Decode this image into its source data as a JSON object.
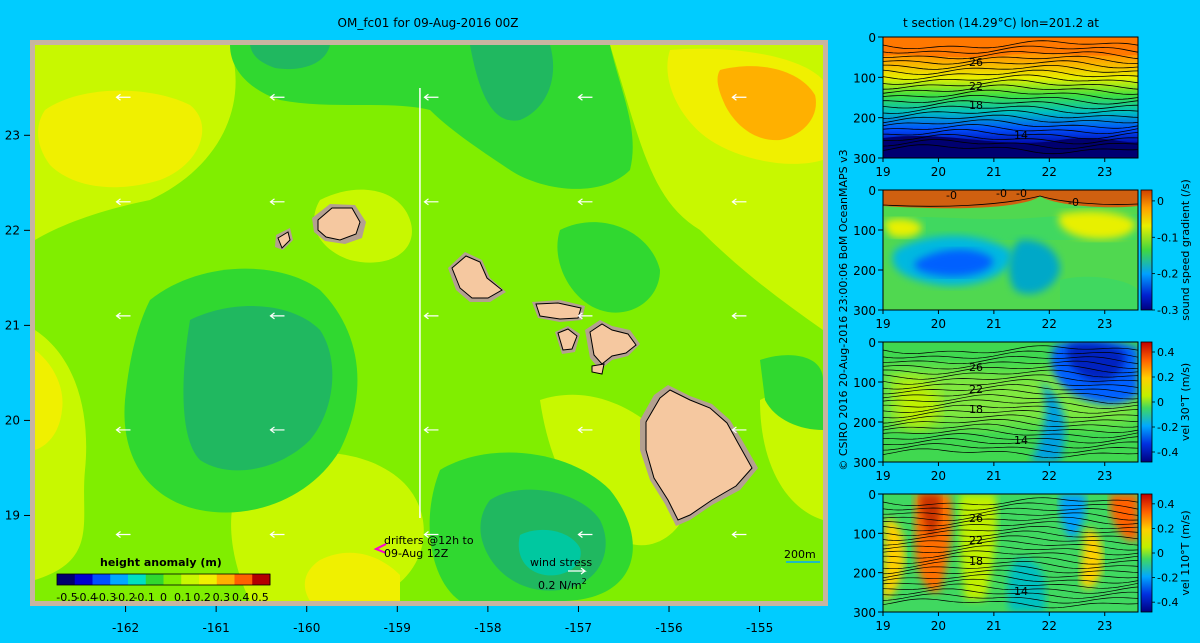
{
  "chart_data": [
    {
      "type": "heatmap",
      "title": "OM_fc01 for 09-Aug-2016 00Z",
      "x_ticks": [
        "-162",
        "-161",
        "-160",
        "-159",
        "-158",
        "-157",
        "-156",
        "-155"
      ],
      "y_ticks": [
        "23",
        "22",
        "21",
        "20",
        "19"
      ],
      "xlim": [
        -163.0,
        -154.3
      ],
      "ylim": [
        18.1,
        23.95
      ],
      "colorbar": {
        "label": "height anomaly  (m)",
        "ticks": [
          "-0.5",
          "-0.4",
          "-0.3",
          "-0.2",
          "-0.1",
          "0",
          "0.1",
          "0.2",
          "0.3",
          "0.4",
          "0.5"
        ],
        "colors": [
          "#00006e",
          "#0000d0",
          "#0050ff",
          "#00a8ff",
          "#00e0c0",
          "#30d830",
          "#80ee00",
          "#c8f800",
          "#f0f000",
          "#ffb000",
          "#ff6000",
          "#b40000"
        ]
      },
      "annotations": {
        "drifters_line1": "drifters @12h to",
        "drifters_line2": "09-Aug 12Z",
        "wind_stress_label": "wind stress",
        "wind_stress_value": "0.2 N/m",
        "wind_stress_sup": "2",
        "depth_label": "200m"
      },
      "section_longitude": -158.75
    },
    {
      "type": "heatmap",
      "title": "t section (14.29°C) lon=201.2 at",
      "x_ticks": [
        "19",
        "20",
        "21",
        "22",
        "23"
      ],
      "y_ticks": [
        "0",
        "100",
        "200",
        "300"
      ],
      "contour_labels": [
        "26",
        "22",
        "18",
        "14"
      ]
    },
    {
      "type": "heatmap",
      "x_ticks": [
        "19",
        "20",
        "21",
        "22",
        "23"
      ],
      "y_ticks": [
        "0",
        "100",
        "200",
        "300"
      ],
      "contour_labels": [
        "-0",
        "-0",
        "-0",
        "-0"
      ],
      "colorbar": {
        "label": "sound speed gradient (/s)",
        "ticks": [
          "0",
          "-0.1",
          "-0.2",
          "-0.3"
        ]
      }
    },
    {
      "type": "heatmap",
      "x_ticks": [
        "19",
        "20",
        "21",
        "22",
        "23"
      ],
      "y_ticks": [
        "0",
        "100",
        "200",
        "300"
      ],
      "contour_labels": [
        "26",
        "22",
        "18",
        "14"
      ],
      "colorbar": {
        "label": "vel 30°T (m/s)",
        "ticks": [
          "0.4",
          "0.2",
          "0",
          "-0.2",
          "-0.4"
        ]
      }
    },
    {
      "type": "heatmap",
      "x_ticks": [
        "19",
        "20",
        "21",
        "22",
        "23"
      ],
      "y_ticks": [
        "0",
        "100",
        "200",
        "300"
      ],
      "contour_labels": [
        "26",
        "22",
        "18",
        "14"
      ],
      "colorbar": {
        "label": "vel 110°T (m/s)",
        "ticks": [
          "0.4",
          "0.2",
          "0",
          "-0.2",
          "-0.4"
        ]
      }
    }
  ],
  "credit": "© CSIRO 2016   20-Aug-2016 23:00:06 BoM OceanMAPS v3",
  "colors": {
    "background": "#00ccff",
    "land": "#f5c8a0",
    "shelf": "#b4a090",
    "frame": "#c8b4a0"
  }
}
